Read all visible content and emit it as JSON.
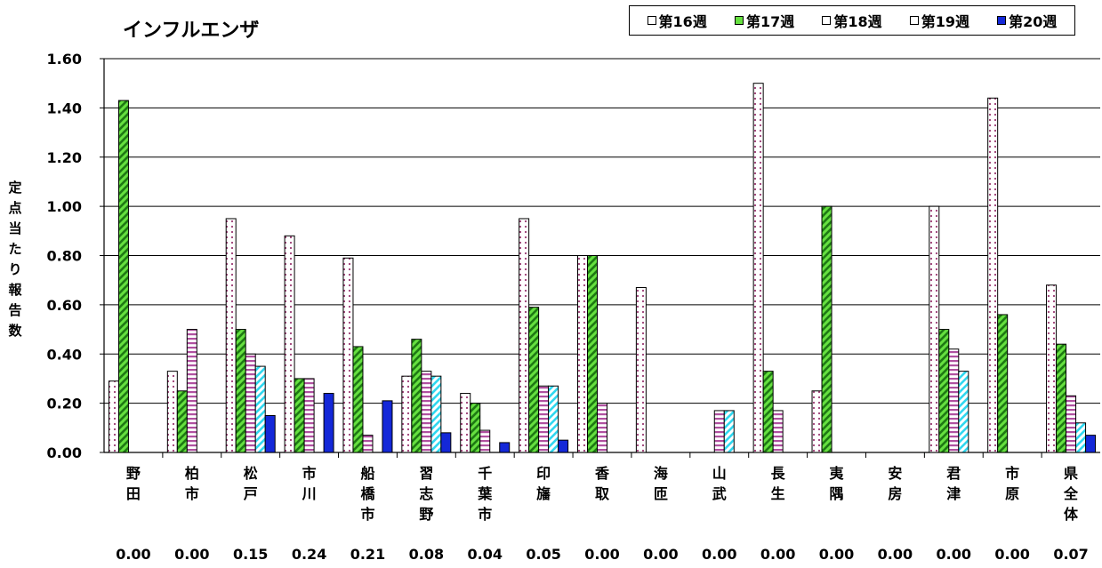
{
  "chart_data": {
    "type": "bar",
    "title": "インフルエンザ",
    "ylabel": "定点当たり報告数",
    "ylim": [
      0,
      1.6
    ],
    "yticks": [
      "0.00",
      "0.20",
      "0.40",
      "0.60",
      "0.80",
      "1.00",
      "1.20",
      "1.40",
      "1.60"
    ],
    "grid": true,
    "legend_position": "top-right",
    "categories": [
      "野田",
      "柏市",
      "松戸",
      "市川",
      "船橋市",
      "習志野",
      "千葉市",
      "印旛",
      "香取",
      "海匝",
      "山武",
      "長生",
      "夷隅",
      "安房",
      "君津",
      "市原",
      "県全体"
    ],
    "series": [
      {
        "name": "第16週",
        "color": "#ffffff",
        "pattern": "dots",
        "pattern_color": "#9b3a72",
        "values": [
          0.29,
          0.33,
          0.95,
          0.88,
          0.79,
          0.31,
          0.24,
          0.95,
          0.8,
          0.67,
          0.0,
          1.5,
          0.25,
          0.0,
          1.0,
          1.44,
          0.68
        ]
      },
      {
        "name": "第17週",
        "color": "#66e040",
        "pattern": "diagonal",
        "pattern_color": "#1e7a14",
        "values": [
          1.43,
          0.25,
          0.5,
          0.3,
          0.43,
          0.46,
          0.2,
          0.59,
          0.8,
          0.0,
          0.0,
          0.33,
          1.0,
          0.0,
          0.5,
          0.56,
          0.44
        ]
      },
      {
        "name": "第18週",
        "color": "#ffffff",
        "pattern": "horizontal",
        "pattern_color": "#b050a0",
        "values": [
          0.0,
          0.5,
          0.4,
          0.3,
          0.07,
          0.33,
          0.09,
          0.27,
          0.2,
          0.0,
          0.17,
          0.17,
          0.0,
          0.0,
          0.42,
          0.0,
          0.23
        ]
      },
      {
        "name": "第19週",
        "color": "#ffffff",
        "pattern": "diagonal",
        "pattern_color": "#30d8f0",
        "values": [
          0.0,
          0.0,
          0.35,
          0.0,
          0.0,
          0.31,
          0.0,
          0.27,
          0.0,
          0.0,
          0.17,
          0.0,
          0.0,
          0.0,
          0.33,
          0.0,
          0.12
        ]
      },
      {
        "name": "第20週",
        "color": "#1428d8",
        "pattern": "none",
        "pattern_color": "#1428d8",
        "values": [
          0.0,
          0.0,
          0.15,
          0.24,
          0.21,
          0.08,
          0.04,
          0.05,
          0.0,
          0.0,
          0.0,
          0.0,
          0.0,
          0.0,
          0.0,
          0.0,
          0.07
        ]
      }
    ],
    "bottom_values": [
      "0.00",
      "0.00",
      "0.15",
      "0.24",
      "0.21",
      "0.08",
      "0.04",
      "0.05",
      "0.00",
      "0.00",
      "0.00",
      "0.00",
      "0.00",
      "0.00",
      "0.00",
      "0.00",
      "0.07"
    ]
  }
}
